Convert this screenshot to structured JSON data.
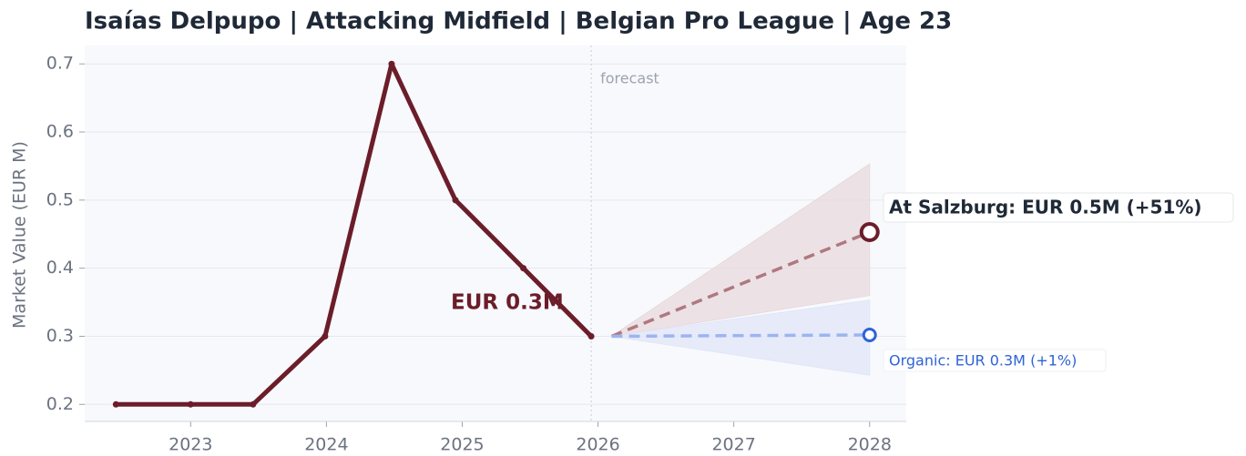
{
  "chart_data": {
    "type": "line",
    "title": "Isaías Delpupo  |  Attacking Midfield  |  Belgian Pro League  |  Age 23",
    "y_label": "Market Value (EUR M)",
    "xlim": [
      2022.22,
      2028.27
    ],
    "xticks": [
      2023,
      2024,
      2025,
      2026,
      2027,
      2028
    ],
    "ylim": [
      0.175,
      0.727
    ],
    "yticks": [
      0.2,
      0.3,
      0.4,
      0.5,
      0.6,
      0.7
    ],
    "grid": true,
    "history": {
      "color": "#6b1d2a",
      "x": [
        2022.45,
        2023.0,
        2023.46,
        2023.99,
        2024.48,
        2024.95,
        2025.45,
        2025.95
      ],
      "values": [
        0.2,
        0.2,
        0.2,
        0.3,
        0.7,
        0.5,
        0.4,
        0.3
      ]
    },
    "forecast_start": 2025.95,
    "forecast_label": "forecast",
    "series": [
      {
        "color": "#b07880",
        "band_color": "#e7d9dc",
        "marker_color": "#6b1d2a",
        "x": [
          2026.1,
          2028
        ],
        "values": [
          0.3,
          0.453
        ],
        "upper": [
          0.3,
          0.553
        ],
        "lower": [
          0.3,
          0.36
        ]
      },
      {
        "color": "#9db4f0",
        "band_color": "#dfe6f8",
        "marker_color": "#2f63d8",
        "x": [
          2026.1,
          2028
        ],
        "values": [
          0.3,
          0.302
        ],
        "upper": [
          0.3,
          0.353
        ],
        "lower": [
          0.3,
          0.243
        ]
      }
    ],
    "annotations": [
      "EUR 0.3M",
      "At Salzburg: EUR 0.5M (+51%)",
      "Organic: EUR 0.3M (+1%)"
    ]
  }
}
